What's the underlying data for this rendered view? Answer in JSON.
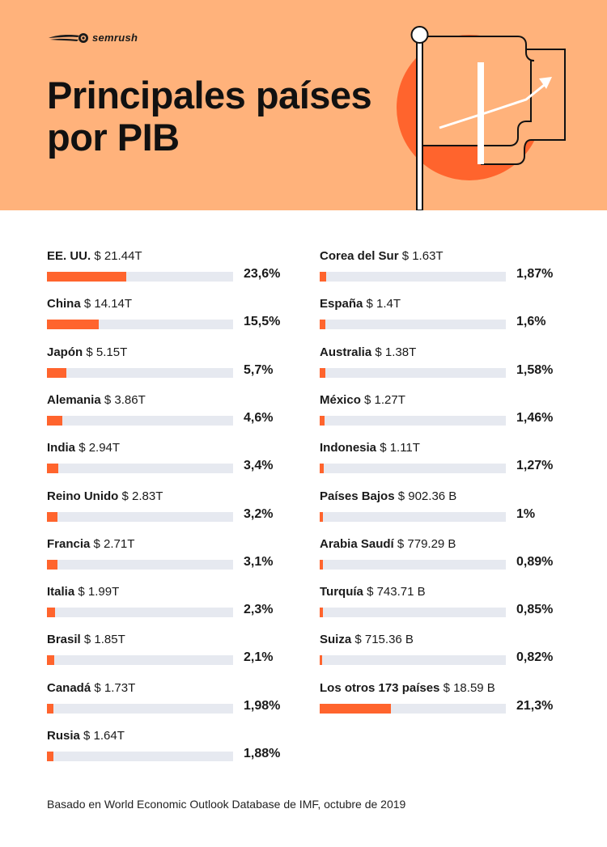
{
  "header": {
    "brand": "semrush",
    "title_line1": "Principales países",
    "title_line2": "por PIB"
  },
  "colors": {
    "header_bg": "#ffb27b",
    "bar_fill": "#ff642d",
    "bar_track": "#e6e9f0",
    "accent_circle": "#ff642d"
  },
  "chart_data": {
    "type": "bar",
    "orientation": "horizontal",
    "xlim": [
      0,
      100
    ],
    "left_column": [
      {
        "name": "EE. UU.",
        "gdp": "$ 21.44T",
        "pct_label": "23,6%",
        "value": 23.6
      },
      {
        "name": "China",
        "gdp": "$ 14.14T",
        "pct_label": "15,5%",
        "value": 15.5
      },
      {
        "name": "Japón",
        "gdp": "$ 5.15T",
        "pct_label": "5,7%",
        "value": 5.7
      },
      {
        "name": "Alemania",
        "gdp": "$ 3.86T",
        "pct_label": "4,6%",
        "value": 4.6
      },
      {
        "name": "India",
        "gdp": "$ 2.94T",
        "pct_label": "3,4%",
        "value": 3.4
      },
      {
        "name": "Reino Unido",
        "gdp": "$ 2.83T",
        "pct_label": "3,2%",
        "value": 3.2
      },
      {
        "name": "Francia",
        "gdp": "$ 2.71T",
        "pct_label": "3,1%",
        "value": 3.1
      },
      {
        "name": "Italia",
        "gdp": "$ 1.99T",
        "pct_label": "2,3%",
        "value": 2.3
      },
      {
        "name": "Brasil",
        "gdp": "$ 1.85T",
        "pct_label": "2,1%",
        "value": 2.1
      },
      {
        "name": "Canadá",
        "gdp": "$ 1.73T",
        "pct_label": "1,98%",
        "value": 1.98
      },
      {
        "name": "Rusia",
        "gdp": "$ 1.64T",
        "pct_label": "1,88%",
        "value": 1.88
      }
    ],
    "right_column": [
      {
        "name": "Corea del Sur",
        "gdp": "$ 1.63T",
        "pct_label": "1,87%",
        "value": 1.87
      },
      {
        "name": "España",
        "gdp": "$ 1.4T",
        "pct_label": "1,6%",
        "value": 1.6
      },
      {
        "name": "Australia",
        "gdp": "$ 1.38T",
        "pct_label": "1,58%",
        "value": 1.58
      },
      {
        "name": "México",
        "gdp": "$ 1.27T",
        "pct_label": "1,46%",
        "value": 1.46
      },
      {
        "name": "Indonesia",
        "gdp": "$ 1.11T",
        "pct_label": "1,27%",
        "value": 1.27
      },
      {
        "name": "Países Bajos",
        "gdp": "$ 902.36 B",
        "pct_label": "1%",
        "value": 1.0
      },
      {
        "name": "Arabia Saudí",
        "gdp": "$ 779.29 B",
        "pct_label": "0,89%",
        "value": 0.89
      },
      {
        "name": "Turquía",
        "gdp": "$ 743.71 B",
        "pct_label": "0,85%",
        "value": 0.85
      },
      {
        "name": "Suiza",
        "gdp": "$ 715.36 B",
        "pct_label": "0,82%",
        "value": 0.82
      },
      {
        "name": "Los otros 173 países",
        "gdp": "$ 18.59 B",
        "pct_label": "21,3%",
        "value": 21.3
      }
    ]
  },
  "footer": {
    "source": "Basado en World Economic Outlook Database de IMF, octubre de 2019"
  }
}
